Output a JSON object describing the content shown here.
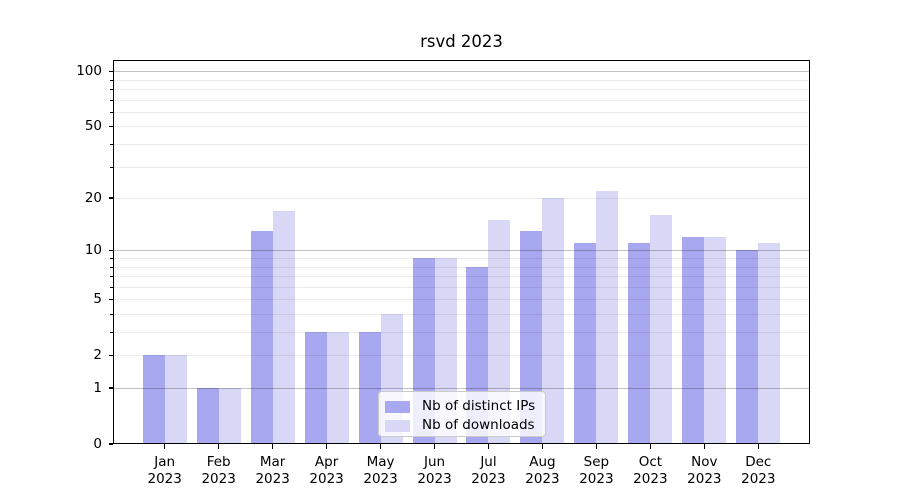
{
  "title": "rsvd 2023",
  "chart_data": {
    "type": "bar",
    "title": "rsvd 2023",
    "categories": [
      "Jan 2023",
      "Feb 2023",
      "Mar 2023",
      "Apr 2023",
      "May 2023",
      "Jun 2023",
      "Jul 2023",
      "Aug 2023",
      "Sep 2023",
      "Oct 2023",
      "Nov 2023",
      "Dec 2023"
    ],
    "series": [
      {
        "name": "Nb of distinct IPs",
        "color": "#a8a8f0",
        "values": [
          2,
          1,
          13,
          3,
          3,
          9,
          8,
          13,
          11,
          11,
          12,
          10
        ]
      },
      {
        "name": "Nb of downloads",
        "color": "#d8d8f6",
        "values": [
          2,
          1,
          17,
          3,
          4,
          9,
          15,
          20,
          22,
          16,
          12,
          11
        ]
      }
    ],
    "xlabel": "",
    "ylabel": "",
    "y_scale": "log1p",
    "ylim": [
      0,
      115
    ],
    "y_ticks": [
      0,
      1,
      2,
      5,
      10,
      20,
      50,
      100
    ],
    "y_gridlines_major": [
      1,
      10,
      100
    ],
    "y_gridlines_minor": [
      2,
      3,
      4,
      5,
      6,
      7,
      8,
      9,
      20,
      30,
      40,
      50,
      60,
      70,
      80,
      90
    ],
    "grid": true,
    "legend_position": "lower center"
  }
}
